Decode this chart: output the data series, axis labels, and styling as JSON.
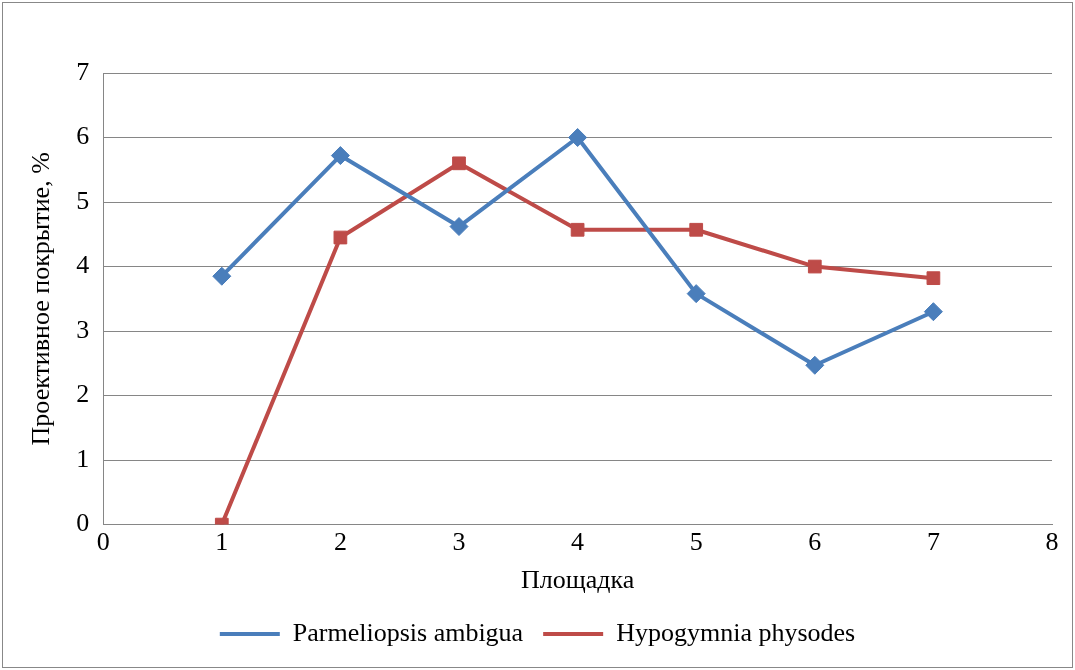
{
  "chart_data": {
    "type": "line",
    "xlabel": "Площадка",
    "ylabel": "Проективное покрытие, %",
    "x": [
      1,
      2,
      3,
      4,
      5,
      6,
      7
    ],
    "series": [
      {
        "name": "Parmeliopsis ambigua",
        "color": "#4a7ebb",
        "values": [
          3.85,
          5.72,
          4.62,
          6.0,
          3.58,
          2.47,
          3.3
        ],
        "marker": "diamond"
      },
      {
        "name": "Hypogymnia physodes",
        "color": "#be4b48",
        "values": [
          0,
          4.45,
          5.6,
          4.57,
          4.57,
          4.0,
          3.82
        ],
        "marker": "square"
      }
    ],
    "xlim": [
      0,
      8
    ],
    "xticks": [
      0,
      1,
      2,
      3,
      4,
      5,
      6,
      7,
      8
    ],
    "ylim": [
      0,
      7
    ],
    "yticks": [
      0,
      1,
      2,
      3,
      4,
      5,
      6,
      7
    ],
    "grid": "y",
    "legend": "bottom",
    "line_style": "solid"
  }
}
